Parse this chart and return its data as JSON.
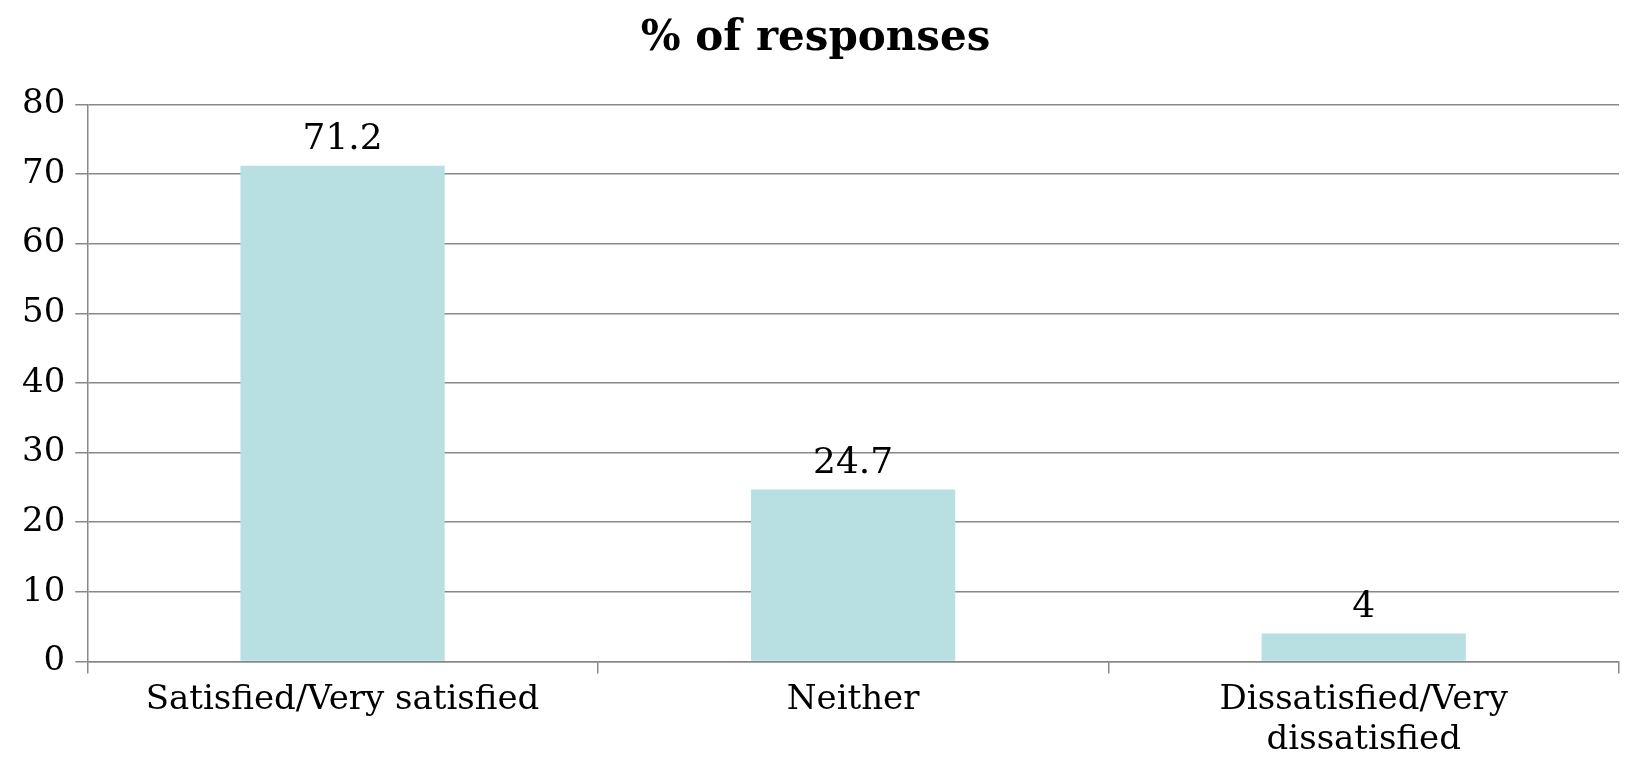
{
  "chart_data": {
    "type": "bar",
    "title": "% of responses",
    "categories": [
      "Satisfied/Very satisfied",
      "Neither",
      "Dissatisfied/Very dissatisfied"
    ],
    "values": [
      71.2,
      24.7,
      4
    ],
    "color": "#b8e0e3",
    "ylim": [
      0,
      80
    ],
    "yticks": [
      0,
      10,
      20,
      30,
      40,
      50,
      60,
      70,
      80
    ],
    "grid": "y",
    "data_labels": true,
    "legend": false
  }
}
